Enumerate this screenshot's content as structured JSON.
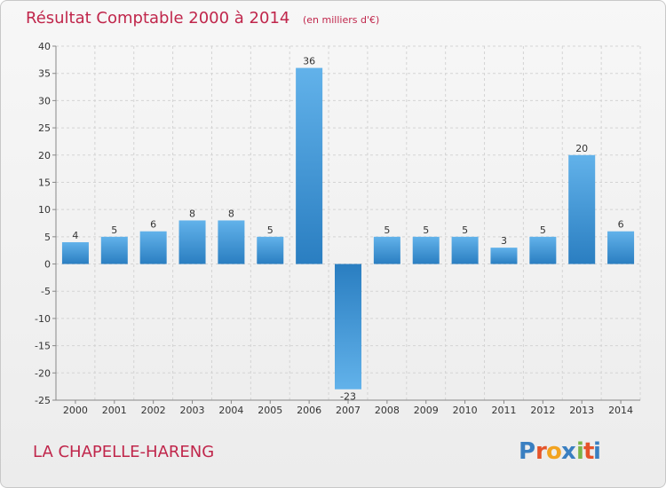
{
  "chart_data": {
    "type": "bar",
    "title": "Résultat Comptable 2000 à 2014",
    "unit_label": "(en milliers d'€)",
    "categories": [
      "2000",
      "2001",
      "2002",
      "2003",
      "2004",
      "2005",
      "2006",
      "2007",
      "2008",
      "2009",
      "2010",
      "2011",
      "2012",
      "2013",
      "2014"
    ],
    "values": [
      4,
      5,
      6,
      8,
      8,
      5,
      36,
      -23,
      5,
      5,
      5,
      3,
      5,
      20,
      6
    ],
    "ylim": [
      -25,
      40
    ],
    "yticks": [
      40,
      35,
      30,
      25,
      20,
      15,
      10,
      5,
      0,
      -5,
      -10,
      -15,
      -20,
      -25
    ],
    "xlabel": "",
    "ylabel": "",
    "grid": true
  },
  "commune_name": "LA CHAPELLE-HARENG",
  "brand": {
    "letters": [
      "P",
      "r",
      "o",
      "x",
      "i",
      "t",
      "i"
    ],
    "colors": [
      "#3a7fc1",
      "#e5542a",
      "#f2a320",
      "#3a7fc1",
      "#7ab648",
      "#e5542a",
      "#3a7fc1"
    ]
  },
  "colors": {
    "bar_light": "#62b2ea",
    "bar_dark": "#2a7ec1",
    "title": "#c0264b"
  }
}
